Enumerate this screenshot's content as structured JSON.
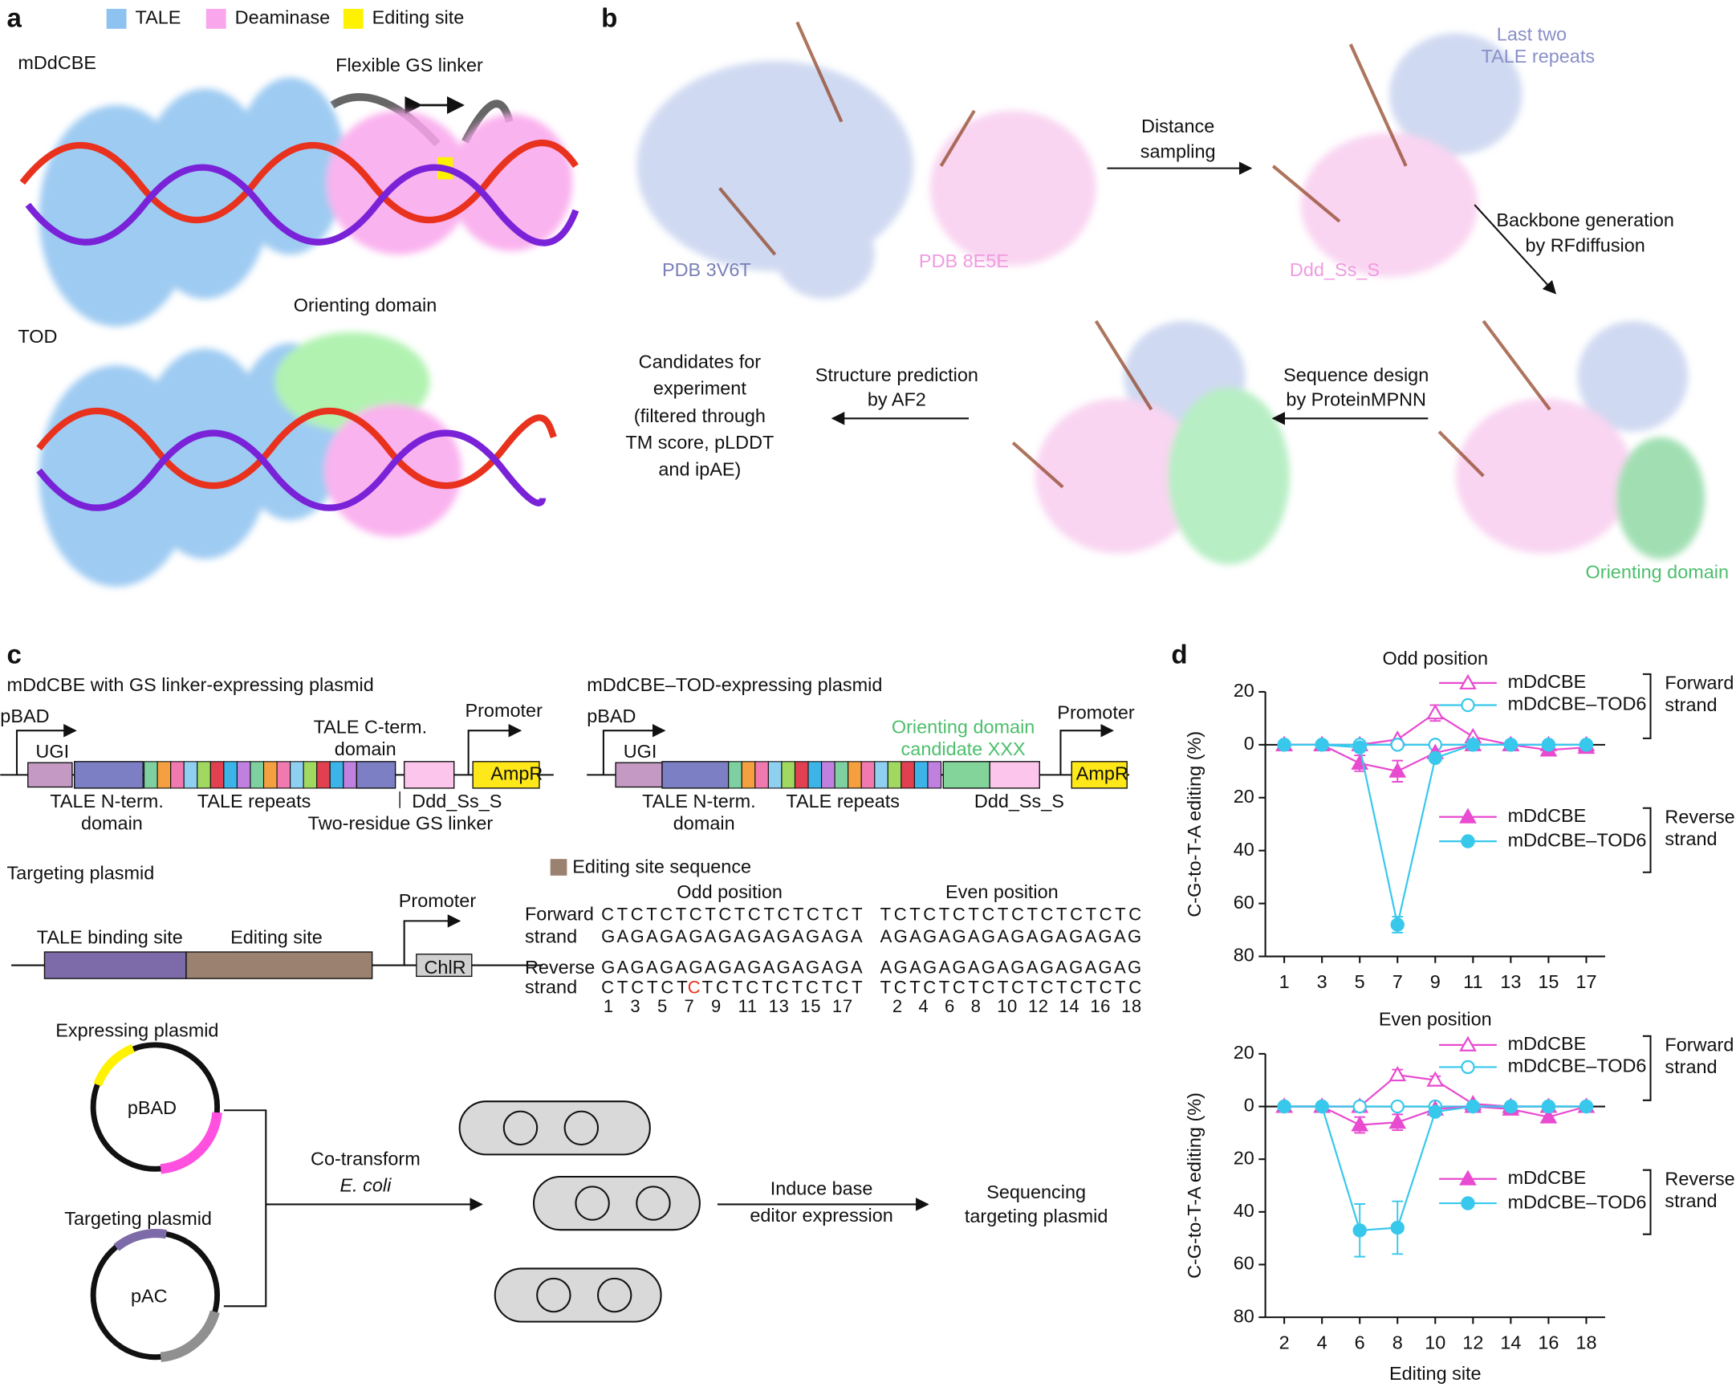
{
  "panel_labels": [
    "a",
    "b",
    "c",
    "d"
  ],
  "panel_a": {
    "legend": [
      "TALE",
      "Deaminase",
      "Editing site"
    ],
    "labels": [
      "mDdCBE",
      "Flexible GS linker",
      "Orienting domain",
      "TOD"
    ]
  },
  "panel_b": {
    "last_two": [
      "Last two",
      "TALE repeats"
    ],
    "distance": [
      "Distance",
      "sampling"
    ],
    "pdb1": "PDB 3V6T",
    "pdb2": "PDB 8E5E",
    "ddd": "Ddd_Ss_S",
    "backbone": [
      "Backbone generation",
      "by RFdiffusion"
    ],
    "candidates": [
      "Candidates for",
      "experiment",
      "(filtered through",
      "TM score, pLDDT",
      "and ipAE)"
    ],
    "structure": [
      "Structure prediction",
      "by AF2"
    ],
    "sequence": [
      "Sequence design",
      "by ProteinMPNN"
    ],
    "orienting": "Orienting domain"
  },
  "panel_c": {
    "plasmid1": {
      "title": "mDdCBE with GS linker-expressing plasmid",
      "pbad": "pBAD",
      "promoter": "Promoter",
      "ampr": "AmpR",
      "ugi": "UGI",
      "cterm": [
        "TALE C-term.",
        "domain"
      ],
      "nterm": [
        "TALE N-term.",
        "domain"
      ],
      "repeats": "TALE repeats",
      "ddd": "Ddd_Ss_S",
      "linker": "Two-residue GS linker"
    },
    "plasmid2": {
      "title": "mDdCBE–TOD-expressing plasmid",
      "pbad": "pBAD",
      "ugi": "UGI",
      "orienting": [
        "Orienting domain",
        "candidate XXX"
      ],
      "promoter": "Promoter",
      "ampr": "AmpR",
      "nterm": [
        "TALE N-term.",
        "domain"
      ],
      "repeats": "TALE repeats",
      "ddd": "Ddd_Ss_S"
    },
    "targeting": {
      "title": "Targeting plasmid",
      "promoter": "Promoter",
      "binding": "TALE binding site",
      "editing": "Editing site",
      "chlr": "ChlR"
    },
    "sequence": {
      "legend": "Editing site sequence",
      "odd": "Odd position",
      "even": "Even position",
      "forward": [
        "Forward",
        "strand"
      ],
      "reverse": [
        "Reverse",
        "strand"
      ],
      "odd_fwd": [
        "CTCTCTCTCTCTCTCTCT",
        "GAGAGAGAGAGAGAGAGA"
      ],
      "even_fwd": [
        "TCTCTCTCTCTCTCTCTC",
        "AGAGAGAGAGAGAGAGAG"
      ],
      "odd_rev_top": "GAGAGAGAGAGAGAGAGA",
      "odd_rev_bottom": [
        "CTCTCT",
        "C",
        "TCTCTCTCTCT"
      ],
      "even_rev": [
        "AGAGAGAGAGAGAGAGAG",
        "TCTCTCTCTCTCTCTCTC"
      ],
      "odd_numbers": "1   3   5   7   9   11  13  15  17",
      "even_numbers": "2   4   6   8   10  12  14  16  18"
    },
    "workflow": {
      "expressing": "Expressing plasmid",
      "pbad": "pBAD",
      "targeting": "Targeting plasmid",
      "pac": "pAC",
      "cotransform": "Co-transform",
      "ecoli": "E. coli",
      "induce": [
        "Induce base",
        "editor expression"
      ],
      "sequencing": [
        "Sequencing",
        "targeting plasmid"
      ]
    }
  },
  "chart_data": [
    {
      "type": "line",
      "title": "Odd position",
      "ylabel": "C-G-to-T-A editing (%)",
      "x": [
        1,
        3,
        5,
        7,
        9,
        11,
        13,
        15,
        17
      ],
      "xlim": [
        0,
        18
      ],
      "xticks": [
        1,
        3,
        5,
        7,
        9,
        11,
        13,
        15,
        17
      ],
      "ylim": [
        -80,
        20
      ],
      "yticks": [
        20,
        0,
        {
          "value": -20,
          "label": "20"
        },
        {
          "value": -40,
          "label": "40"
        },
        {
          "value": -60,
          "label": "60"
        },
        {
          "value": -80,
          "label": "80"
        }
      ],
      "legend_groups": [
        [
          "Forward",
          "strand"
        ],
        [
          "Reverse",
          "strand"
        ]
      ],
      "series": [
        {
          "name": "mDdCBE",
          "color": "#e84ad0",
          "marker": "open-triangle",
          "values": [
            0,
            0,
            0,
            2,
            12,
            3,
            0,
            0,
            0
          ],
          "errors": [
            0,
            0,
            0,
            0,
            3,
            0,
            0,
            0,
            0
          ]
        },
        {
          "name": "mDdCBE–TOD6",
          "color": "#38c8ec",
          "marker": "open-circle",
          "values": [
            0,
            0,
            0,
            0,
            0,
            0,
            0,
            0,
            0
          ],
          "errors": [
            0,
            0,
            0,
            0,
            0,
            0,
            0,
            0,
            0
          ]
        },
        {
          "name": "mDdCBE",
          "color": "#e84ad0",
          "marker": "filled-triangle",
          "values": [
            0,
            0,
            -7,
            -10,
            -3,
            0,
            0,
            -2,
            -1
          ],
          "errors": [
            0,
            0,
            3,
            4,
            0,
            0,
            0,
            0,
            0
          ]
        },
        {
          "name": "mDdCBE–TOD6",
          "color": "#38c8ec",
          "marker": "filled-circle",
          "values": [
            0,
            0,
            -1,
            -68,
            -5,
            0,
            0,
            0,
            0
          ],
          "errors": [
            0,
            0,
            0,
            3,
            0,
            0,
            0,
            0,
            0
          ]
        }
      ]
    },
    {
      "type": "line",
      "title": "Even position",
      "ylabel": "C-G-to-T-A editing (%)",
      "xlabel": "Editing site",
      "x": [
        2,
        4,
        6,
        8,
        10,
        12,
        14,
        16,
        18
      ],
      "xlim": [
        1,
        19
      ],
      "xticks": [
        2,
        4,
        6,
        8,
        10,
        12,
        14,
        16,
        18
      ],
      "ylim": [
        -80,
        20
      ],
      "yticks": [
        20,
        0,
        {
          "value": -20,
          "label": "20"
        },
        {
          "value": -40,
          "label": "40"
        },
        {
          "value": -60,
          "label": "60"
        },
        {
          "value": -80,
          "label": "80"
        }
      ],
      "legend_groups": [
        [
          "Forward",
          "strand"
        ],
        [
          "Reverse",
          "strand"
        ]
      ],
      "series": [
        {
          "name": "mDdCBE",
          "color": "#e84ad0",
          "marker": "open-triangle",
          "values": [
            0,
            0,
            0,
            12,
            10,
            1,
            0,
            0,
            0
          ],
          "errors": [
            0,
            0,
            0,
            2,
            1.5,
            0,
            0,
            0,
            0
          ]
        },
        {
          "name": "mDdCBE–TOD6",
          "color": "#38c8ec",
          "marker": "open-circle",
          "values": [
            0,
            0,
            0,
            0,
            0,
            0,
            0,
            0,
            0
          ],
          "errors": [
            0,
            0,
            0,
            0,
            0,
            0,
            0,
            0,
            0
          ]
        },
        {
          "name": "mDdCBE",
          "color": "#e84ad0",
          "marker": "filled-triangle",
          "values": [
            0,
            0,
            -7,
            -6,
            -1,
            0,
            -1,
            -4,
            0
          ],
          "errors": [
            0,
            0,
            3,
            3,
            0,
            0,
            0,
            2,
            0
          ]
        },
        {
          "name": "mDdCBE–TOD6",
          "color": "#38c8ec",
          "marker": "filled-circle",
          "values": [
            0,
            0,
            -47,
            -46,
            -2,
            0,
            0,
            0,
            0
          ],
          "errors": [
            0,
            0,
            10,
            10,
            0,
            0,
            0,
            0,
            0
          ]
        }
      ]
    }
  ]
}
